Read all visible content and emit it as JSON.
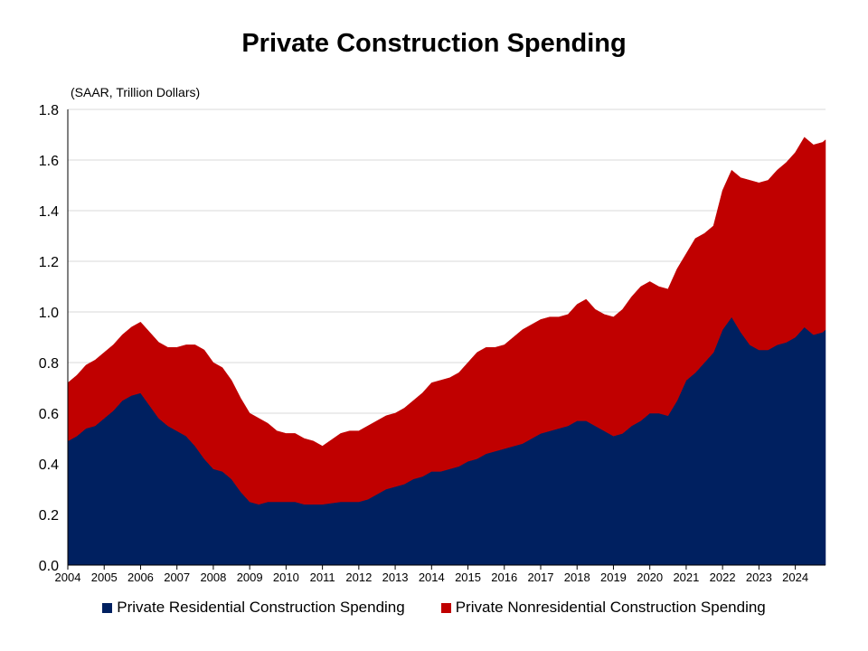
{
  "chart_data": {
    "type": "area",
    "stacked": true,
    "title": "Private Construction Spending",
    "ylabel": "(SAAR, Trillion Dollars)",
    "xlabel": "",
    "xlim": [
      2004.0,
      2024.83
    ],
    "ylim": [
      0,
      1.8
    ],
    "ytick_step": 0.2,
    "x_ticks": [
      "2004",
      "2005",
      "2006",
      "2007",
      "2008",
      "2009",
      "2010",
      "2011",
      "2012",
      "2013",
      "2014",
      "2015",
      "2016",
      "2017",
      "2018",
      "2019",
      "2020",
      "2021",
      "2022",
      "2023",
      "2024"
    ],
    "y_ticks": [
      "0.0",
      "0.2",
      "0.4",
      "0.6",
      "0.8",
      "1.0",
      "1.2",
      "1.4",
      "1.6",
      "1.8"
    ],
    "grid": true,
    "legend_position": "bottom",
    "x": [
      2004.0,
      2004.25,
      2004.5,
      2004.75,
      2005.0,
      2005.25,
      2005.5,
      2005.75,
      2006.0,
      2006.25,
      2006.5,
      2006.75,
      2007.0,
      2007.25,
      2007.5,
      2007.75,
      2008.0,
      2008.25,
      2008.5,
      2008.75,
      2009.0,
      2009.25,
      2009.5,
      2009.75,
      2010.0,
      2010.25,
      2010.5,
      2010.75,
      2011.0,
      2011.25,
      2011.5,
      2011.75,
      2012.0,
      2012.25,
      2012.5,
      2012.75,
      2013.0,
      2013.25,
      2013.5,
      2013.75,
      2014.0,
      2014.25,
      2014.5,
      2014.75,
      2015.0,
      2015.25,
      2015.5,
      2015.75,
      2016.0,
      2016.25,
      2016.5,
      2016.75,
      2017.0,
      2017.25,
      2017.5,
      2017.75,
      2018.0,
      2018.25,
      2018.5,
      2018.75,
      2019.0,
      2019.25,
      2019.5,
      2019.75,
      2020.0,
      2020.25,
      2020.5,
      2020.75,
      2021.0,
      2021.25,
      2021.5,
      2021.75,
      2022.0,
      2022.25,
      2022.5,
      2022.75,
      2023.0,
      2023.25,
      2023.5,
      2023.75,
      2024.0,
      2024.25,
      2024.5,
      2024.75,
      2024.83
    ],
    "series": [
      {
        "name": "Private Residential Construction Spending",
        "color": "#002060",
        "values": [
          0.49,
          0.51,
          0.54,
          0.55,
          0.58,
          0.61,
          0.65,
          0.67,
          0.68,
          0.63,
          0.58,
          0.55,
          0.53,
          0.51,
          0.47,
          0.42,
          0.38,
          0.37,
          0.34,
          0.29,
          0.25,
          0.24,
          0.25,
          0.25,
          0.25,
          0.25,
          0.24,
          0.24,
          0.24,
          0.245,
          0.25,
          0.25,
          0.25,
          0.26,
          0.28,
          0.3,
          0.31,
          0.32,
          0.34,
          0.35,
          0.37,
          0.37,
          0.38,
          0.39,
          0.41,
          0.42,
          0.44,
          0.45,
          0.46,
          0.47,
          0.48,
          0.5,
          0.52,
          0.53,
          0.54,
          0.55,
          0.57,
          0.57,
          0.55,
          0.53,
          0.51,
          0.52,
          0.55,
          0.57,
          0.6,
          0.6,
          0.59,
          0.65,
          0.73,
          0.76,
          0.8,
          0.84,
          0.93,
          0.98,
          0.92,
          0.87,
          0.85,
          0.85,
          0.87,
          0.88,
          0.9,
          0.94,
          0.91,
          0.92,
          0.93
        ]
      },
      {
        "name": "Private Nonresidential Construction Spending",
        "color": "#C00000",
        "values": [
          0.23,
          0.24,
          0.25,
          0.26,
          0.26,
          0.26,
          0.26,
          0.27,
          0.28,
          0.29,
          0.3,
          0.31,
          0.33,
          0.36,
          0.4,
          0.43,
          0.42,
          0.41,
          0.39,
          0.37,
          0.35,
          0.34,
          0.31,
          0.28,
          0.27,
          0.27,
          0.26,
          0.25,
          0.23,
          0.25,
          0.27,
          0.28,
          0.28,
          0.29,
          0.29,
          0.29,
          0.29,
          0.3,
          0.31,
          0.33,
          0.35,
          0.36,
          0.36,
          0.37,
          0.39,
          0.42,
          0.42,
          0.41,
          0.41,
          0.43,
          0.45,
          0.45,
          0.45,
          0.45,
          0.44,
          0.44,
          0.46,
          0.48,
          0.46,
          0.46,
          0.47,
          0.49,
          0.51,
          0.53,
          0.52,
          0.5,
          0.5,
          0.52,
          0.5,
          0.53,
          0.51,
          0.5,
          0.55,
          0.58,
          0.61,
          0.65,
          0.66,
          0.67,
          0.69,
          0.71,
          0.73,
          0.75,
          0.75,
          0.75,
          0.75
        ]
      }
    ]
  }
}
